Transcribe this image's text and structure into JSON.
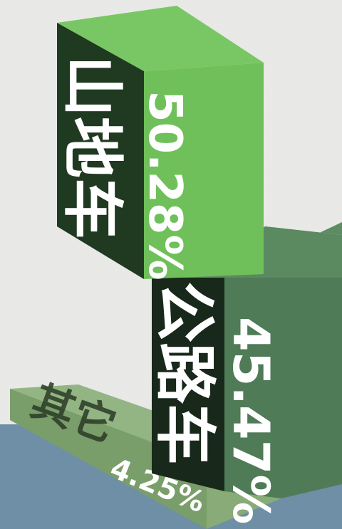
{
  "chart_data": {
    "type": "bar",
    "categories": [
      "山地车",
      "公路车",
      "其它"
    ],
    "values": [
      50.28,
      45.47,
      4.25
    ],
    "value_labels": [
      "50.28%",
      "45.47%",
      "4.25%"
    ],
    "unit": "%",
    "title": "",
    "xlabel": "",
    "ylabel": "",
    "legend": "none",
    "grid": false
  },
  "colors": {
    "background_paper": "#ebebe9",
    "water_blue": "#6e8fa6",
    "mtb_front": "#6fc05a",
    "mtb_top": "#79c764",
    "mtb_side": "#1f3a20",
    "road_front": "#4f7b57",
    "road_top": "#5e8b63",
    "road_side": "#18281a",
    "other_top": "#93b583",
    "other_front": "#7a9e6a",
    "label_text": "#ffffff"
  }
}
